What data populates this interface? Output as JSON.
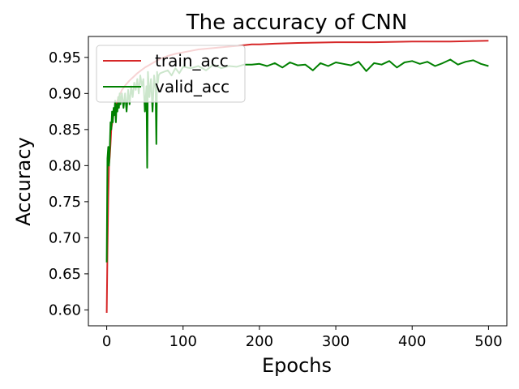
{
  "chart_data": {
    "type": "line",
    "title": "The accuracy of CNN",
    "xlabel": "Epochs",
    "ylabel": "Accuracy",
    "xlim": [
      -24,
      524
    ],
    "ylim": [
      0.578,
      0.979
    ],
    "xticks": [
      0,
      100,
      200,
      300,
      400,
      500
    ],
    "yticks": [
      0.6,
      0.65,
      0.7,
      0.75,
      0.8,
      0.85,
      0.9,
      0.95
    ],
    "grid": false,
    "legend_position": "top-left",
    "series": [
      {
        "name": "train_acc",
        "color": "#d62728",
        "x": [
          0,
          1,
          2,
          3,
          4,
          5,
          6,
          8,
          10,
          12,
          15,
          18,
          20,
          25,
          30,
          35,
          40,
          45,
          50,
          55,
          60,
          65,
          70,
          80,
          90,
          100,
          110,
          120,
          130,
          140,
          150,
          160,
          170,
          180,
          190,
          200,
          220,
          250,
          300,
          350,
          400,
          450,
          500
        ],
        "y": [
          0.596,
          0.68,
          0.755,
          0.8,
          0.813,
          0.83,
          0.85,
          0.865,
          0.875,
          0.885,
          0.893,
          0.9,
          0.905,
          0.912,
          0.918,
          0.923,
          0.928,
          0.932,
          0.936,
          0.939,
          0.942,
          0.945,
          0.948,
          0.952,
          0.955,
          0.957,
          0.959,
          0.961,
          0.962,
          0.963,
          0.964,
          0.965,
          0.966,
          0.967,
          0.968,
          0.968,
          0.969,
          0.97,
          0.971,
          0.971,
          0.972,
          0.972,
          0.973
        ]
      },
      {
        "name": "valid_acc",
        "color": "#008000",
        "x": [
          0,
          1,
          2,
          3,
          4,
          5,
          6,
          7,
          8,
          9,
          10,
          11,
          12,
          13,
          14,
          15,
          16,
          17,
          18,
          20,
          22,
          24,
          26,
          28,
          30,
          32,
          34,
          36,
          38,
          40,
          42,
          44,
          46,
          48,
          50,
          52,
          53,
          54,
          56,
          58,
          60,
          62,
          64,
          65,
          66,
          67,
          68,
          70,
          75,
          80,
          85,
          90,
          95,
          100,
          110,
          120,
          130,
          140,
          150,
          160,
          170,
          180,
          190,
          200,
          210,
          220,
          230,
          240,
          250,
          260,
          270,
          280,
          290,
          300,
          310,
          320,
          330,
          340,
          350,
          360,
          370,
          380,
          390,
          400,
          410,
          420,
          430,
          440,
          450,
          460,
          470,
          480,
          490,
          500
        ],
        "y": [
          0.666,
          0.81,
          0.826,
          0.8,
          0.825,
          0.86,
          0.85,
          0.875,
          0.86,
          0.88,
          0.87,
          0.89,
          0.86,
          0.885,
          0.875,
          0.895,
          0.88,
          0.9,
          0.885,
          0.9,
          0.88,
          0.9,
          0.875,
          0.905,
          0.885,
          0.91,
          0.895,
          0.915,
          0.905,
          0.92,
          0.9,
          0.925,
          0.91,
          0.92,
          0.875,
          0.91,
          0.797,
          0.93,
          0.895,
          0.92,
          0.875,
          0.925,
          0.905,
          0.83,
          0.93,
          0.915,
          0.925,
          0.928,
          0.93,
          0.932,
          0.925,
          0.935,
          0.928,
          0.937,
          0.935,
          0.938,
          0.932,
          0.94,
          0.935,
          0.938,
          0.937,
          0.94,
          0.94,
          0.941,
          0.938,
          0.942,
          0.936,
          0.943,
          0.939,
          0.94,
          0.932,
          0.942,
          0.938,
          0.943,
          0.941,
          0.939,
          0.944,
          0.931,
          0.942,
          0.94,
          0.945,
          0.936,
          0.943,
          0.945,
          0.941,
          0.944,
          0.938,
          0.942,
          0.947,
          0.94,
          0.944,
          0.946,
          0.941,
          0.938
        ]
      }
    ]
  }
}
